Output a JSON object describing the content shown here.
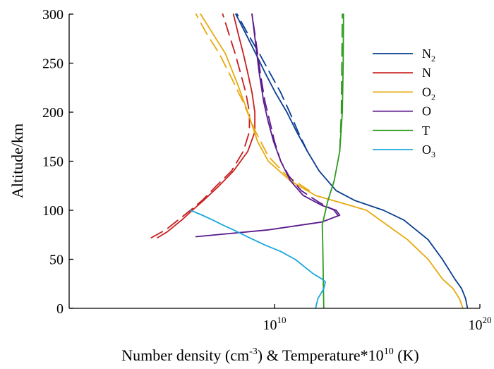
{
  "chart_data": {
    "type": "line",
    "xlabel": "Number density (cm-3) & Temperature*1010 (K)",
    "xlabel_parts": {
      "prefix": "Number density (cm",
      "exp1": "-3",
      "middle": ") & Temperature*10",
      "exp2": "10",
      "suffix": " (K)"
    },
    "ylabel": "Altitude/km",
    "x_scale": "log",
    "xlim": [
      1,
      1e+20
    ],
    "ylim": [
      0,
      300
    ],
    "x_ticks": [
      {
        "value": 10000000000.0,
        "base": "10",
        "exp": "10"
      },
      {
        "value": 1e+20,
        "base": "10",
        "exp": "20"
      }
    ],
    "y_ticks": [
      0,
      50,
      100,
      150,
      200,
      250,
      300
    ],
    "grid": false,
    "legend_position": "top-right",
    "legend": [
      {
        "name": "N",
        "sub": "2",
        "color": "#0a3d91"
      },
      {
        "name": "N",
        "sub": "",
        "color": "#c81e1e"
      },
      {
        "name": "O",
        "sub": "2",
        "color": "#e8a90e"
      },
      {
        "name": "O",
        "sub": "",
        "color": "#5b1a8c"
      },
      {
        "name": "T",
        "sub": "",
        "color": "#2e9a1e"
      },
      {
        "name": "O",
        "sub": "3",
        "color": "#1aa7dc"
      }
    ],
    "series": [
      {
        "name": "N2",
        "color": "#0a3d91",
        "style": "solid",
        "points": [
          [
            2.5e+19,
            0
          ],
          [
            2e+19,
            10
          ],
          [
            1.3e+19,
            20
          ],
          [
            6e+18,
            30
          ],
          [
            1.5e+18,
            50
          ],
          [
            3e+17,
            70
          ],
          [
            2e+16,
            90
          ],
          [
            2000000000000000.0,
            100
          ],
          [
            80000000000000.0,
            110
          ],
          [
            10000000000000.0,
            120
          ],
          [
            1500000000000.0,
            140
          ],
          [
            400000000000.0,
            160
          ],
          [
            120000000000.0,
            180
          ],
          [
            40000000000.0,
            200
          ],
          [
            11000000000.0,
            220
          ],
          [
            3500000000.0,
            240
          ],
          [
            1200000000.0,
            260
          ],
          [
            400000000.0,
            280
          ],
          [
            130000000.0,
            300
          ]
        ]
      },
      {
        "name": "N2 (dashed)",
        "color": "#0a3d91",
        "style": "dashed",
        "points": [
          [
            400000000000.0,
            160
          ],
          [
            140000000000.0,
            180
          ],
          [
            55000000000.0,
            200
          ],
          [
            20000000000.0,
            220
          ],
          [
            6000000000.0,
            240
          ],
          [
            1800000000.0,
            260
          ],
          [
            500000000.0,
            280
          ],
          [
            150000000.0,
            300
          ]
        ]
      },
      {
        "name": "N",
        "color": "#c81e1e",
        "style": "solid",
        "points": [
          [
            20000.0,
            72
          ],
          [
            60000.0,
            78
          ],
          [
            300000.0,
            90
          ],
          [
            1000000.0,
            100
          ],
          [
            3500000.0,
            110
          ],
          [
            20000000.0,
            125
          ],
          [
            100000000.0,
            140
          ],
          [
            500000000.0,
            160
          ],
          [
            1100000000.0,
            180
          ],
          [
            1100000000.0,
            200
          ],
          [
            800000000.0,
            220
          ],
          [
            500000000.0,
            240
          ],
          [
            300000000.0,
            260
          ],
          [
            170000000.0,
            280
          ],
          [
            100000000.0,
            300
          ]
        ]
      },
      {
        "name": "N (dashed)",
        "color": "#c81e1e",
        "style": "dashed",
        "points": [
          [
            10000.0,
            72
          ],
          [
            50000.0,
            80
          ],
          [
            200000.0,
            90
          ],
          [
            800000.0,
            100
          ],
          [
            3000000.0,
            110
          ],
          [
            15000000.0,
            125
          ],
          [
            80000000.0,
            140
          ],
          [
            300000000.0,
            160
          ],
          [
            600000000.0,
            180
          ],
          [
            600000000.0,
            200
          ],
          [
            400000000.0,
            220
          ],
          [
            220000000.0,
            240
          ],
          [
            120000000.0,
            260
          ],
          [
            60000000.0,
            280
          ],
          [
            30000000.0,
            300
          ]
        ]
      },
      {
        "name": "O2",
        "color": "#e8a90e",
        "style": "solid",
        "points": [
          [
            1.5e+19,
            0
          ],
          [
            1e+19,
            10
          ],
          [
            5e+18,
            20
          ],
          [
            1.5e+18,
            30
          ],
          [
            3e+17,
            50
          ],
          [
            3e+16,
            70
          ],
          [
            3000000000000000.0,
            85
          ],
          [
            300000000000000.0,
            100
          ],
          [
            15000000000000.0,
            108
          ],
          [
            1000000000000.0,
            115
          ],
          [
            60000000000.0,
            130
          ],
          [
            5000000000.0,
            150
          ],
          [
            1500000000.0,
            170
          ],
          [
            500000000.0,
            200
          ],
          [
            150000000.0,
            230
          ],
          [
            40000000.0,
            260
          ],
          [
            10000000.0,
            280
          ],
          [
            2500000.0,
            300
          ]
        ]
      },
      {
        "name": "O2 (dashed)",
        "color": "#e8a90e",
        "style": "dashed",
        "points": [
          [
            500000000000.0,
            120
          ],
          [
            40000000000.0,
            135
          ],
          [
            5000000000.0,
            155
          ],
          [
            1200000000.0,
            180
          ],
          [
            300000000.0,
            210
          ],
          [
            80000000.0,
            235
          ],
          [
            20000000.0,
            260
          ],
          [
            5000000.0,
            280
          ],
          [
            1500000.0,
            300
          ]
        ]
      },
      {
        "name": "O",
        "color": "#5b1a8c",
        "style": "solid",
        "points": [
          [
            1500000.0,
            73
          ],
          [
            5000000000.0,
            80
          ],
          [
            2000000000000.0,
            88
          ],
          [
            15000000000000.0,
            95
          ],
          [
            10000000000000.0,
            100
          ],
          [
            2000000000000.0,
            105
          ],
          [
            250000000000.0,
            115
          ],
          [
            60000000000.0,
            130
          ],
          [
            20000000000.0,
            150
          ],
          [
            9000000000.0,
            170
          ],
          [
            5000000000.0,
            190
          ],
          [
            3000000000.0,
            210
          ],
          [
            1800000000.0,
            240
          ],
          [
            1200000000.0,
            270
          ],
          [
            800000000.0,
            300
          ]
        ]
      },
      {
        "name": "O (dashed)",
        "color": "#5b1a8c",
        "style": "dashed",
        "points": [
          [
            12000000000000.0,
            95
          ],
          [
            8000000000000.0,
            100
          ],
          [
            1500000000000.0,
            108
          ],
          [
            200000000000.0,
            120
          ],
          [
            50000000000.0,
            135
          ],
          [
            20000000000.0,
            150
          ],
          [
            10000000000.0,
            170
          ],
          [
            6000000000.0,
            190
          ],
          [
            3500000000.0,
            210
          ],
          [
            2200000000.0,
            235
          ],
          [
            1500000000.0,
            260
          ],
          [
            1100000000.0,
            280
          ],
          [
            800000000.0,
            300
          ]
        ]
      },
      {
        "name": "T",
        "color": "#2e9a1e",
        "style": "solid",
        "points": [
          [
            2500000000000.0,
            0
          ],
          [
            2400000000000.0,
            20
          ],
          [
            2300000000000.0,
            50
          ],
          [
            2200000000000.0,
            70
          ],
          [
            2100000000000.0,
            85
          ],
          [
            2700000000000.0,
            95
          ],
          [
            4000000000000.0,
            110
          ],
          [
            8000000000000.0,
            130
          ],
          [
            15000000000000.0,
            160
          ],
          [
            20000000000000.0,
            200
          ],
          [
            22000000000000.0,
            250
          ],
          [
            23000000000000.0,
            300
          ]
        ]
      },
      {
        "name": "T (dashed)",
        "color": "#2e9a1e",
        "style": "dashed",
        "points": [
          [
            15000000000000.0,
            160
          ],
          [
            18000000000000.0,
            200
          ],
          [
            19000000000000.0,
            250
          ],
          [
            20000000000000.0,
            300
          ]
        ]
      },
      {
        "name": "O3",
        "color": "#1aa7dc",
        "style": "solid",
        "points": [
          [
            1000000000000.0,
            0
          ],
          [
            1300000000000.0,
            10
          ],
          [
            2500000000000.0,
            20
          ],
          [
            3000000000000.0,
            27
          ],
          [
            2000000000000.0,
            30
          ],
          [
            800000000000.0,
            35
          ],
          [
            400000000000.0,
            40
          ],
          [
            100000000000.0,
            50
          ],
          [
            20000000000.0,
            58
          ],
          [
            3000000000.0,
            65
          ],
          [
            600000000.0,
            72
          ],
          [
            100000000.0,
            80
          ],
          [
            30000000.0,
            85
          ],
          [
            10000000.0,
            90
          ],
          [
            3000000.0,
            95
          ],
          [
            800000.0,
            100
          ]
        ]
      }
    ]
  }
}
